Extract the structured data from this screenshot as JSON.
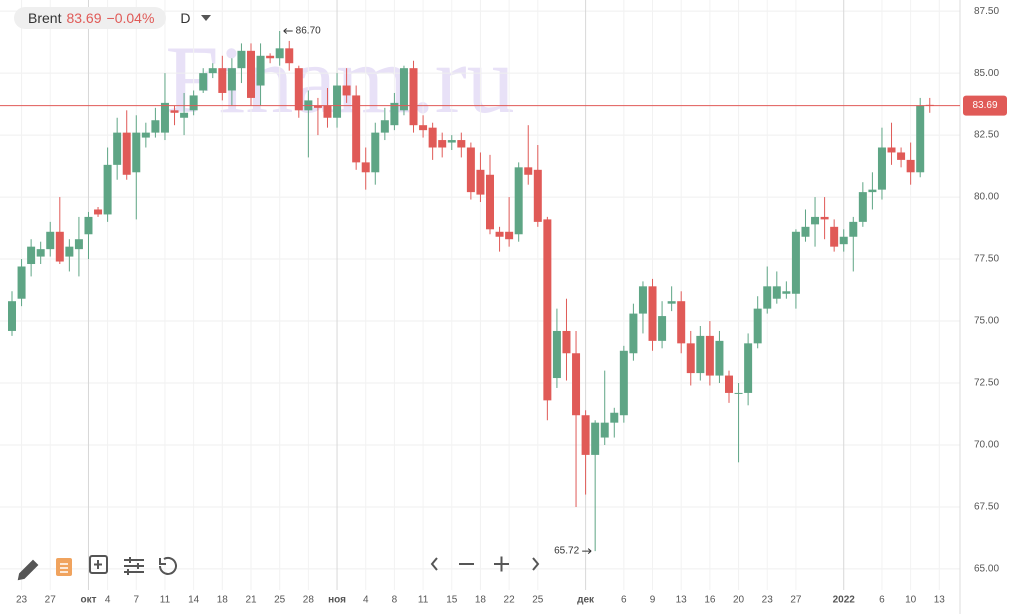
{
  "header": {
    "symbol": "Brent",
    "change": "−0.04%",
    "interval": "D"
  },
  "chart_data": {
    "type": "candlestick",
    "watermark": "Finam.ru",
    "last": 83.69,
    "up_color": "#5ea585",
    "down_color": "#e05a57",
    "last_color": "#e05a57",
    "max_label": "86.70",
    "min_label": "65.72",
    "ylim": [
      64.15,
      87.95
    ],
    "yticks": [
      {
        "value": 65,
        "label": "65.00"
      },
      {
        "value": 67.5,
        "label": "67.50"
      },
      {
        "value": 70,
        "label": "70.00"
      },
      {
        "value": 72.5,
        "label": "72.50"
      },
      {
        "value": 75,
        "label": "75.00"
      },
      {
        "value": 77.5,
        "label": "77.50"
      },
      {
        "value": 80,
        "label": "80.00"
      },
      {
        "value": 82.5,
        "label": "82.50"
      },
      {
        "value": 85,
        "label": "85.00"
      },
      {
        "value": 87.5,
        "label": "87.50"
      }
    ],
    "grid": true,
    "categories": [
      null,
      "23",
      null,
      null,
      "27",
      null,
      null,
      null,
      "окт",
      null,
      "4",
      null,
      null,
      "7",
      null,
      null,
      "11",
      null,
      null,
      "14",
      null,
      null,
      "18",
      null,
      null,
      "21",
      null,
      null,
      "25",
      null,
      null,
      "28",
      null,
      null,
      "ноя",
      null,
      null,
      "4",
      null,
      null,
      "8",
      null,
      null,
      "11",
      null,
      null,
      "15",
      null,
      null,
      "18",
      null,
      null,
      "22",
      null,
      null,
      "25",
      null,
      null,
      null,
      null,
      "дек",
      null,
      null,
      null,
      "6",
      null,
      null,
      "9",
      null,
      null,
      "13",
      null,
      null,
      "16",
      null,
      null,
      "20",
      null,
      null,
      "23",
      null,
      null,
      "27",
      null,
      null,
      null,
      null,
      "2022",
      null,
      null,
      null,
      "6",
      null,
      null,
      "10",
      null,
      null,
      "13"
    ],
    "open": [
      74.6,
      75.9,
      77.3,
      77.6,
      77.9,
      78.6,
      77.6,
      77.9,
      78.5,
      79.5,
      79.3,
      81.3,
      82.6,
      81.0,
      82.4,
      82.6,
      82.6,
      83.5,
      83.2,
      83.5,
      84.3,
      85.0,
      85.2,
      84.3,
      85.2,
      85.9,
      84.5,
      85.7,
      85.6,
      86.0,
      85.2,
      83.5,
      83.7,
      83.7,
      83.2,
      84.5,
      84.1,
      81.4,
      81.0,
      82.6,
      82.9,
      83.5,
      85.2,
      82.9,
      82.8,
      82.3,
      82.2,
      82.3,
      82.0,
      81.1,
      80.9,
      78.6,
      78.6,
      78.5,
      81.2,
      81.1,
      79.1,
      72.7,
      74.6,
      73.7,
      71.2,
      69.6,
      70.3,
      70.9,
      71.2,
      73.7,
      75.3,
      76.4,
      74.2,
      75.7,
      75.8,
      74.1,
      72.9,
      74.4,
      72.8,
      72.8,
      72.1,
      72.1,
      74.1,
      75.5,
      75.9,
      76.1,
      76.1,
      78.4,
      78.9,
      79.2,
      78.8,
      78.1,
      78.4,
      79.0,
      80.2,
      80.3,
      82.0,
      81.8,
      81.5,
      81.0,
      83.72,
      null
    ],
    "high": [
      76.2,
      77.5,
      78.3,
      78.2,
      79.0,
      80.0,
      78.3,
      79.2,
      79.4,
      79.6,
      82.0,
      83.2,
      83.5,
      83.3,
      83.0,
      83.6,
      85.0,
      83.7,
      84.2,
      84.3,
      85.2,
      85.4,
      85.7,
      85.6,
      86.2,
      86.2,
      86.2,
      85.8,
      86.7,
      86.3,
      85.3,
      84.3,
      84.0,
      84.4,
      85.0,
      85.2,
      84.5,
      82.0,
      83.0,
      83.6,
      84.2,
      85.3,
      85.5,
      83.3,
      83.0,
      82.6,
      82.5,
      82.6,
      82.2,
      81.8,
      81.7,
      78.8,
      80.0,
      81.4,
      82.9,
      82.1,
      79.2,
      75.5,
      75.9,
      74.6,
      71.4,
      71.0,
      73.0,
      71.5,
      74.0,
      75.7,
      76.6,
      76.7,
      75.8,
      76.4,
      76.2,
      74.6,
      74.8,
      75.0,
      74.6,
      73.0,
      72.5,
      74.5,
      76.0,
      77.2,
      77.0,
      76.6,
      78.7,
      79.5,
      80.0,
      80.0,
      79.1,
      78.7,
      79.2,
      80.6,
      81.0,
      82.8,
      83.0,
      82.0,
      82.2,
      84.0,
      84.0,
      null
    ],
    "low": [
      74.4,
      75.6,
      76.8,
      77.3,
      77.6,
      77.3,
      77.0,
      76.8,
      77.5,
      79.2,
      79.0,
      80.7,
      80.7,
      79.1,
      82.0,
      82.4,
      82.3,
      82.9,
      82.5,
      83.3,
      84.2,
      84.8,
      83.9,
      83.7,
      84.6,
      83.7,
      83.7,
      85.4,
      85.3,
      85.1,
      83.2,
      81.6,
      82.5,
      82.8,
      82.8,
      83.8,
      81.1,
      80.3,
      80.5,
      82.3,
      82.7,
      83.3,
      82.6,
      82.4,
      81.5,
      81.6,
      81.9,
      81.6,
      79.9,
      79.8,
      78.5,
      77.8,
      78.0,
      78.2,
      80.5,
      78.8,
      71.0,
      72.3,
      72.6,
      67.5,
      68.0,
      65.72,
      70.0,
      70.3,
      70.9,
      73.4,
      74.5,
      73.8,
      73.9,
      75.4,
      73.7,
      72.4,
      72.6,
      72.4,
      72.5,
      71.7,
      69.3,
      71.6,
      73.9,
      75.3,
      75.7,
      75.9,
      75.5,
      78.2,
      78.0,
      78.3,
      77.8,
      77.8,
      77.0,
      78.8,
      79.5,
      79.9,
      81.3,
      81.2,
      80.5,
      80.8,
      83.4,
      null
    ],
    "close": [
      75.8,
      77.2,
      78.0,
      77.9,
      78.6,
      77.4,
      78.0,
      78.3,
      79.2,
      79.3,
      81.3,
      82.6,
      80.9,
      82.6,
      82.6,
      83.1,
      83.8,
      83.4,
      83.4,
      84.1,
      85.0,
      85.2,
      84.2,
      85.2,
      85.9,
      84.0,
      85.7,
      85.6,
      86.0,
      85.4,
      83.5,
      83.9,
      83.6,
      83.2,
      84.5,
      84.1,
      81.4,
      81.0,
      82.6,
      83.1,
      83.8,
      85.2,
      82.9,
      82.7,
      82.0,
      82.0,
      82.3,
      82.0,
      80.2,
      80.1,
      78.7,
      78.4,
      78.3,
      81.2,
      80.9,
      79.0,
      71.8,
      74.6,
      73.7,
      71.2,
      69.6,
      70.9,
      70.9,
      71.3,
      73.8,
      75.3,
      76.4,
      74.2,
      75.2,
      75.8,
      74.1,
      72.9,
      74.4,
      72.8,
      74.2,
      72.1,
      72.1,
      74.1,
      75.5,
      76.4,
      76.4,
      76.2,
      78.6,
      78.8,
      79.2,
      79.1,
      78.0,
      78.4,
      79.0,
      80.2,
      80.3,
      82.0,
      81.8,
      81.5,
      81.0,
      83.7,
      83.69,
      null
    ]
  }
}
